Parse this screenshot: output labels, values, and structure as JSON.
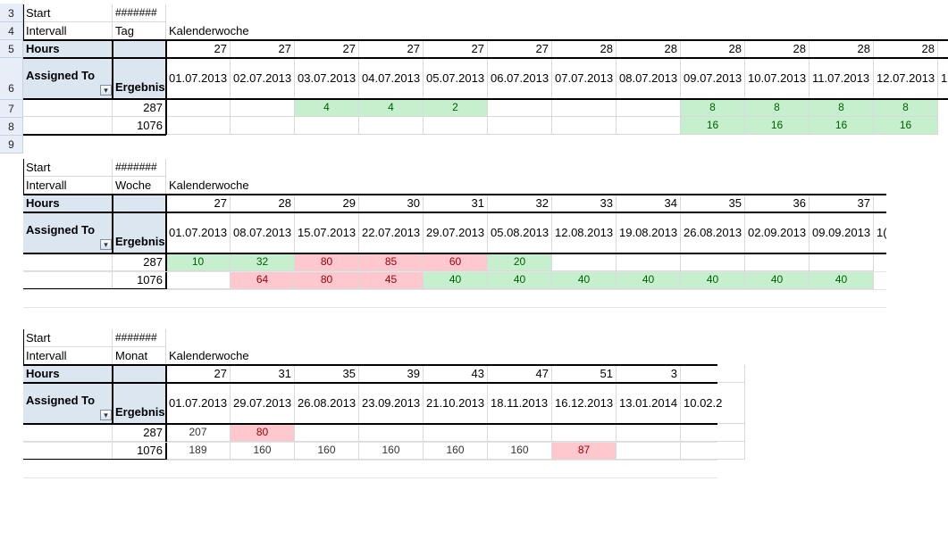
{
  "block1": {
    "row_numbers": [
      "3",
      "4",
      "5",
      "6",
      "7",
      "8",
      "9"
    ],
    "start_label": "Start",
    "start_value": "#######",
    "intervall_label": "Intervall",
    "intervall_value": "Tag",
    "kw_label": "Kalenderwoche",
    "hours_label": "Hours",
    "assigned_label": "Assigned To",
    "ergebnis_label": "Ergebnis",
    "weeks": [
      "27",
      "27",
      "27",
      "27",
      "27",
      "27",
      "28",
      "28",
      "28",
      "28",
      "28",
      "28"
    ],
    "dates": [
      "01.07.2013",
      "02.07.2013",
      "03.07.2013",
      "04.07.2013",
      "05.07.2013",
      "06.07.2013",
      "07.07.2013",
      "08.07.2013",
      "09.07.2013",
      "10.07.2013",
      "11.07.2013",
      "12.07.2013",
      "1"
    ],
    "rows": [
      {
        "id": "287",
        "cells": [
          "",
          "",
          "4",
          "4",
          "2",
          "",
          "",
          "",
          "8",
          "8",
          "8",
          "8"
        ]
      },
      {
        "id": "1076",
        "cells": [
          "",
          "",
          "",
          "",
          "",
          "",
          "",
          "",
          "16",
          "16",
          "16",
          "16"
        ]
      }
    ]
  },
  "block2": {
    "start_label": "Start",
    "start_value": "#######",
    "intervall_label": "Intervall",
    "intervall_value": "Woche",
    "kw_label": "Kalenderwoche",
    "hours_label": "Hours",
    "assigned_label": "Assigned To",
    "ergebnis_label": "Ergebnis",
    "weeks": [
      "27",
      "28",
      "29",
      "30",
      "31",
      "32",
      "33",
      "34",
      "35",
      "36",
      "37"
    ],
    "dates": [
      "01.07.2013",
      "08.07.2013",
      "15.07.2013",
      "22.07.2013",
      "29.07.2013",
      "05.08.2013",
      "12.08.2013",
      "19.08.2013",
      "26.08.2013",
      "02.09.2013",
      "09.09.2013",
      "1("
    ],
    "rows": [
      {
        "id": "287",
        "cells": [
          {
            "v": "10",
            "c": "green"
          },
          {
            "v": "32",
            "c": "green"
          },
          {
            "v": "80",
            "c": "red"
          },
          {
            "v": "85",
            "c": "red"
          },
          {
            "v": "60",
            "c": "red"
          },
          {
            "v": "20",
            "c": "green"
          },
          {
            "v": "",
            "c": ""
          },
          {
            "v": "",
            "c": ""
          },
          {
            "v": "",
            "c": ""
          },
          {
            "v": "",
            "c": ""
          },
          {
            "v": "",
            "c": ""
          }
        ]
      },
      {
        "id": "1076",
        "cells": [
          {
            "v": "",
            "c": ""
          },
          {
            "v": "64",
            "c": "red"
          },
          {
            "v": "80",
            "c": "red"
          },
          {
            "v": "45",
            "c": "red"
          },
          {
            "v": "40",
            "c": "green"
          },
          {
            "v": "40",
            "c": "green"
          },
          {
            "v": "40",
            "c": "green"
          },
          {
            "v": "40",
            "c": "green"
          },
          {
            "v": "40",
            "c": "green"
          },
          {
            "v": "40",
            "c": "green"
          },
          {
            "v": "40",
            "c": "green"
          }
        ]
      }
    ]
  },
  "block3": {
    "start_label": "Start",
    "start_value": "#######",
    "intervall_label": "Intervall",
    "intervall_value": "Monat",
    "kw_label": "Kalenderwoche",
    "hours_label": "Hours",
    "assigned_label": "Assigned To",
    "ergebnis_label": "Ergebnis",
    "weeks": [
      "27",
      "31",
      "35",
      "39",
      "43",
      "47",
      "51",
      "3",
      ""
    ],
    "dates": [
      "01.07.2013",
      "29.07.2013",
      "26.08.2013",
      "23.09.2013",
      "21.10.2013",
      "18.11.2013",
      "16.12.2013",
      "13.01.2014",
      "10.02.2"
    ],
    "rows": [
      {
        "id": "287",
        "cells": [
          {
            "v": "207",
            "c": "plain"
          },
          {
            "v": "80",
            "c": "red"
          },
          {
            "v": "",
            "c": ""
          },
          {
            "v": "",
            "c": ""
          },
          {
            "v": "",
            "c": ""
          },
          {
            "v": "",
            "c": ""
          },
          {
            "v": "",
            "c": ""
          },
          {
            "v": "",
            "c": ""
          },
          {
            "v": "",
            "c": ""
          }
        ]
      },
      {
        "id": "1076",
        "cells": [
          {
            "v": "189",
            "c": "plain"
          },
          {
            "v": "160",
            "c": "plain"
          },
          {
            "v": "160",
            "c": "plain"
          },
          {
            "v": "160",
            "c": "plain"
          },
          {
            "v": "160",
            "c": "plain"
          },
          {
            "v": "160",
            "c": "plain"
          },
          {
            "v": "87",
            "c": "red"
          },
          {
            "v": "",
            "c": ""
          },
          {
            "v": "",
            "c": ""
          }
        ]
      }
    ]
  },
  "colors": {
    "green_fill": "#c6efce",
    "green_text": "#006100",
    "red_fill": "#ffc7ce",
    "red_text": "#9c0006",
    "header_blue": "#dce6f1"
  },
  "icons": {
    "filter": "filter-dropdown-icon"
  }
}
